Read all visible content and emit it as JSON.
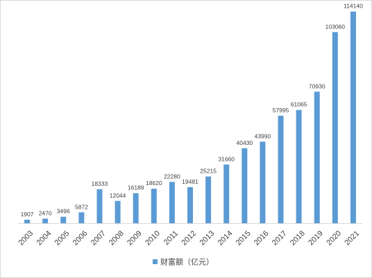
{
  "chart_data": {
    "type": "bar",
    "categories": [
      "2003",
      "2004",
      "2005",
      "2006",
      "2007",
      "2008",
      "2009",
      "2010",
      "2011",
      "2012",
      "2013",
      "2014",
      "2015",
      "2016",
      "2017",
      "2018",
      "2019",
      "2020",
      "2021"
    ],
    "series": [
      {
        "name": "财富额（亿元）",
        "color": "#5b9bd5",
        "values": [
          1907,
          2470,
          3496,
          5872,
          18333,
          12044,
          16189,
          18620,
          22280,
          19481,
          25215,
          31660,
          40430,
          43990,
          57995,
          61065,
          70930,
          103060,
          114140
        ]
      }
    ],
    "data_labels": true,
    "gridlines": false,
    "y_axis_visible": false,
    "ylim": [
      0,
      120000
    ],
    "legend_position": "bottom"
  }
}
